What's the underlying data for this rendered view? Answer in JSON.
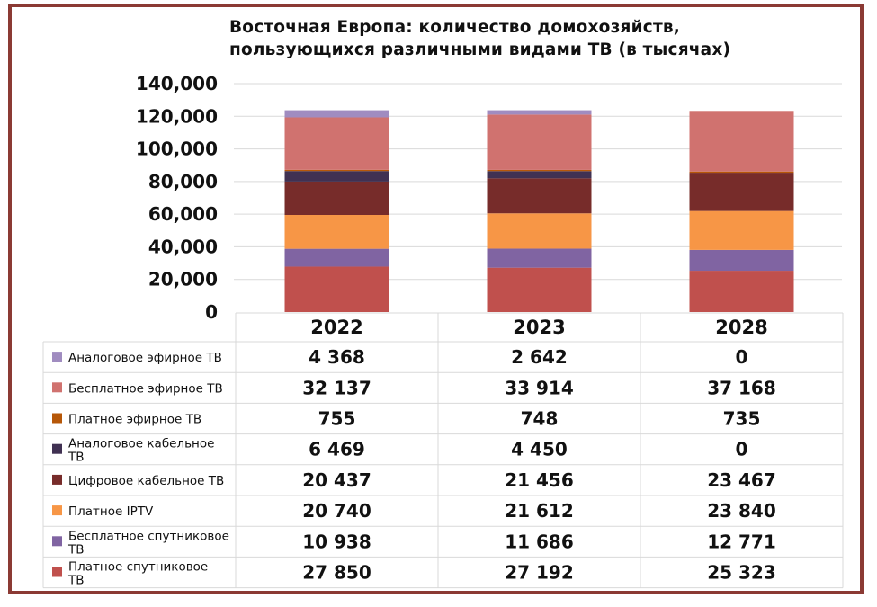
{
  "chart_data": {
    "type": "bar",
    "stacked": true,
    "title_lines": [
      "Восточная Европа: количество домохозяйств,",
      "пользующихся различными видами ТВ (в тысячах)"
    ],
    "categories": [
      "2022",
      "2023",
      "2028"
    ],
    "ylim": [
      0,
      140000
    ],
    "yticks": [
      "0",
      "20,000",
      "40,000",
      "60,000",
      "80,000",
      "100,000",
      "120,000",
      "140,000"
    ],
    "ytick_values": [
      0,
      20000,
      40000,
      60000,
      80000,
      100000,
      120000,
      140000
    ],
    "grid": true,
    "legend_placement": "data-table-left",
    "series": [
      {
        "name": "Платное спутниковое ТВ",
        "label_lines": [
          "Платное спутниковое",
          "ТВ"
        ],
        "color": "#c0504d",
        "values": [
          27850,
          27192,
          25323
        ],
        "labels": [
          "27 850",
          "27 192",
          "25 323"
        ]
      },
      {
        "name": "Бесплатное спутниковое ТВ",
        "label_lines": [
          "Бесплатное спутниковое",
          "ТВ"
        ],
        "color": "#8064a2",
        "values": [
          10938,
          11686,
          12771
        ],
        "labels": [
          "10 938",
          "11 686",
          "12 771"
        ]
      },
      {
        "name": "Платное IPTV",
        "label_lines": [
          "Платное IPTV"
        ],
        "color": "#f79646",
        "values": [
          20740,
          21612,
          23840
        ],
        "labels": [
          "20 740",
          "21 612",
          "23 840"
        ]
      },
      {
        "name": "Цифровое кабельное ТВ",
        "label_lines": [
          "Цифровое кабельное ТВ"
        ],
        "color": "#772c2a",
        "values": [
          20437,
          21456,
          23467
        ],
        "labels": [
          "20 437",
          "21 456",
          "23 467"
        ]
      },
      {
        "name": "Аналоговое кабельное ТВ",
        "label_lines": [
          "Аналоговое кабельное",
          "ТВ"
        ],
        "color": "#403152",
        "values": [
          6469,
          4450,
          0
        ],
        "labels": [
          "6 469",
          "4 450",
          "0"
        ]
      },
      {
        "name": "Платное эфирное ТВ",
        "label_lines": [
          "Платное эфирное ТВ"
        ],
        "color": "#b65708",
        "values": [
          755,
          748,
          735
        ],
        "labels": [
          "755",
          "748",
          "735"
        ]
      },
      {
        "name": "Бесплатное эфирное ТВ",
        "label_lines": [
          "Бесплатное эфирное ТВ"
        ],
        "color": "#d0726f",
        "values": [
          32137,
          33914,
          37168
        ],
        "labels": [
          "32 137",
          "33 914",
          "37 168"
        ]
      },
      {
        "name": "Аналоговое эфирное ТВ",
        "label_lines": [
          "Аналоговое эфирное ТВ"
        ],
        "color": "#a08cc0",
        "values": [
          4368,
          2642,
          0
        ],
        "labels": [
          "4 368",
          "2 642",
          "0"
        ]
      }
    ]
  }
}
